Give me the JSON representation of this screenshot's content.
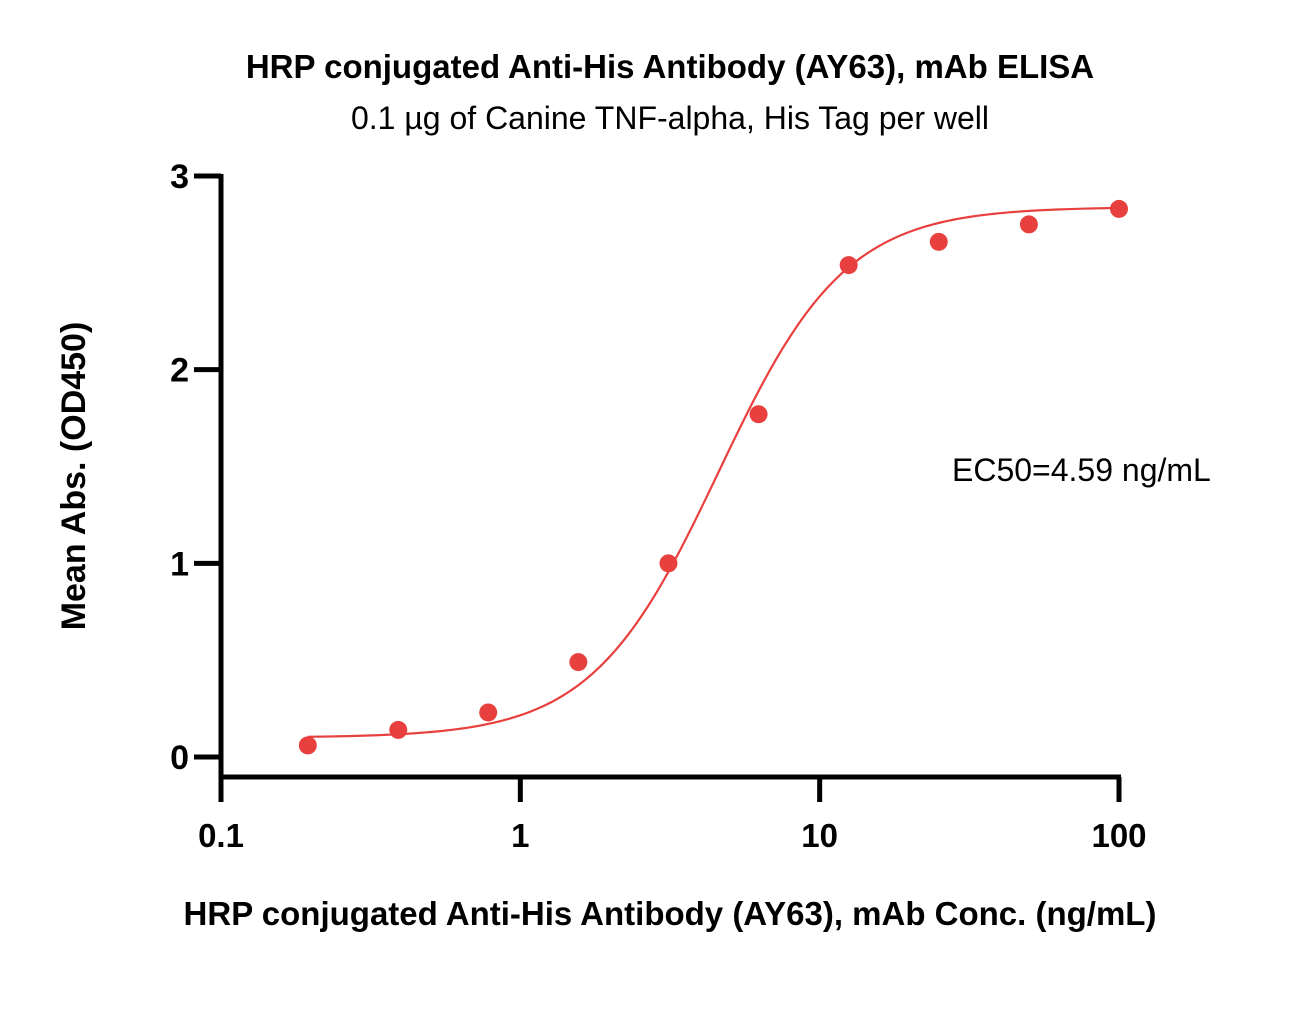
{
  "chart_data": {
    "type": "scatter",
    "title": "HRP conjugated Anti-His Antibody (AY63), mAb ELISA",
    "subtitle": "0.1 µg of Canine TNF-alpha, His Tag per well",
    "xlabel": "HRP conjugated Anti-His Antibody (AY63), mAb Conc. (ng/mL)",
    "ylabel": "Mean Abs. (OD450)",
    "x_scale": "log",
    "xlim": [
      0.1,
      100
    ],
    "ylim": [
      0,
      3
    ],
    "x_ticks": [
      0.1,
      1,
      10,
      100
    ],
    "x_tick_labels": [
      "0.1",
      "1",
      "10",
      "100"
    ],
    "y_ticks": [
      0,
      1,
      2,
      3
    ],
    "y_tick_labels": [
      "0",
      "1",
      "2",
      "3"
    ],
    "grid": false,
    "annotation": "EC50=4.59 ng/mL",
    "series": [
      {
        "color": "#e8403f",
        "x": [
          0.195,
          0.391,
          0.781,
          1.5625,
          3.125,
          6.25,
          12.5,
          25,
          50,
          100
        ],
        "y": [
          0.06,
          0.14,
          0.23,
          0.49,
          1.0,
          1.77,
          2.54,
          2.66,
          2.75,
          2.83
        ]
      }
    ],
    "fit": {
      "type": "4PL",
      "bottom": 0.1,
      "top": 2.84,
      "ec50": 4.59,
      "hill": 2.05,
      "color": "#e8403f"
    }
  }
}
